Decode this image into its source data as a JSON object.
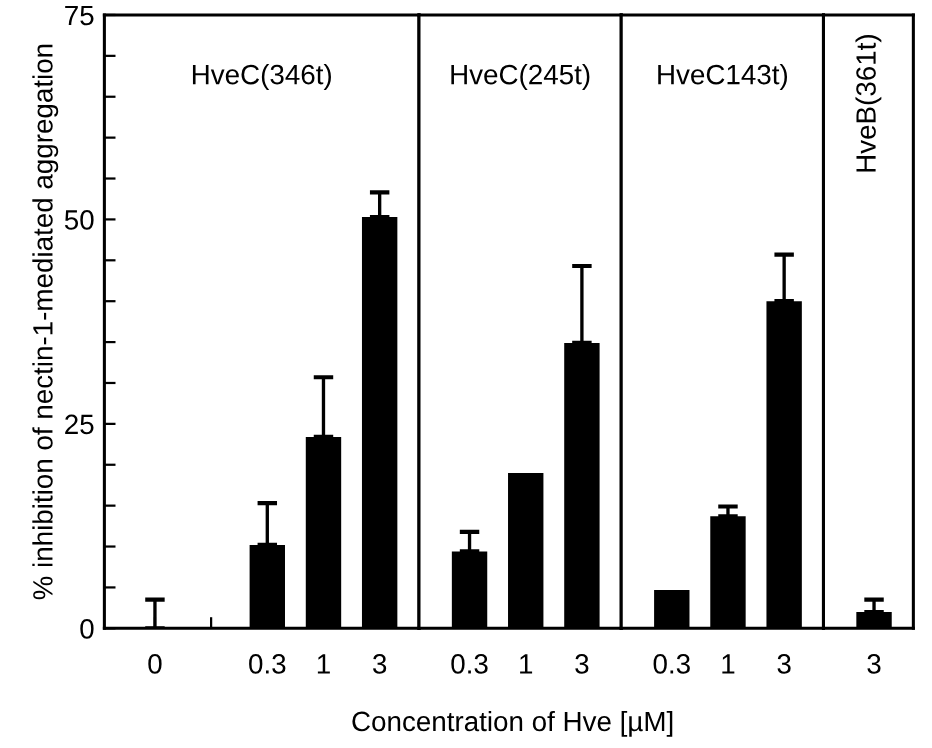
{
  "chart_data": [
    {
      "type": "bar",
      "title": "HveC(346t)",
      "ylabel": "% inhibition of nectin-1-mediated aggregation",
      "xlabel": "Concentration of Hve [µM]",
      "categories": [
        "0",
        null,
        "0.3",
        "1",
        "3"
      ],
      "values": [
        0,
        null,
        10.2,
        23.4,
        50.3
      ],
      "errors": [
        [
          0,
          3.5
        ],
        null,
        [
          10.2,
          15.3
        ],
        [
          23.4,
          30.7
        ],
        [
          50.3,
          53.3
        ]
      ],
      "color": "#000000",
      "ylim": [
        0,
        75
      ],
      "yticks": [
        0,
        {
          "value": 5,
          "label": null
        },
        {
          "value": 10,
          "label": null
        },
        {
          "value": 15,
          "label": null
        },
        {
          "value": 20,
          "label": null
        },
        25,
        {
          "value": 30,
          "label": null
        },
        {
          "value": 35,
          "label": null
        },
        {
          "value": 40,
          "label": null
        },
        {
          "value": 45,
          "label": null
        },
        50,
        {
          "value": 55,
          "label": null
        },
        {
          "value": 60,
          "label": null
        },
        {
          "value": 65,
          "label": null
        },
        {
          "value": 70,
          "label": null
        },
        75
      ]
    },
    {
      "type": "bar",
      "title": "HveC(245t)",
      "categories": [
        "0.3",
        "1",
        "3"
      ],
      "values": [
        9.4,
        19,
        34.9
      ],
      "errors": [
        [
          9.4,
          11.8
        ],
        null,
        [
          34.9,
          44.3
        ]
      ],
      "color": "#000000",
      "ylim": [
        0,
        75
      ],
      "tick_labels": "x"
    },
    {
      "type": "bar",
      "title": "HveC143t)",
      "categories": [
        "0.3",
        "1",
        "3"
      ],
      "values": [
        4.7,
        13.7,
        40
      ],
      "errors": [
        null,
        [
          13.7,
          14.9
        ],
        [
          40,
          45.7
        ]
      ],
      "color": "#000000",
      "ylim": [
        0,
        75
      ],
      "tick_labels": "x"
    },
    {
      "type": "bar",
      "title": "HveB(361t)",
      "categories": [
        "3"
      ],
      "values": [
        2
      ],
      "errors": [
        [
          2,
          3.5
        ]
      ],
      "color": "#000000",
      "ylim": [
        0,
        75
      ],
      "tick_labels": "x"
    }
  ]
}
